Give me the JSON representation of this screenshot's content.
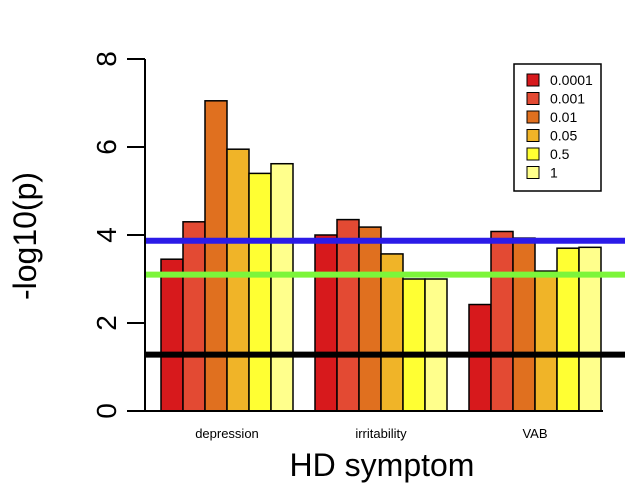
{
  "chart_data": {
    "type": "bar",
    "categories": [
      "depression",
      "irritability",
      "VAB"
    ],
    "xlabel": "HD symptom",
    "ylabel": "-log10(p)",
    "ylim": [
      0,
      8
    ],
    "yticks": [
      "0",
      "2",
      "4",
      "6",
      "8"
    ],
    "grid": false,
    "legend_position": "top-right",
    "series": [
      {
        "name": "0.0001",
        "color": "#d7191c",
        "values": [
          3.45,
          4.0,
          2.42
        ]
      },
      {
        "name": "0.001",
        "color": "#e34a33",
        "values": [
          4.3,
          4.35,
          4.08
        ]
      },
      {
        "name": "0.01",
        "color": "#e0701f",
        "values": [
          7.05,
          4.18,
          3.93
        ]
      },
      {
        "name": "0.05",
        "color": "#f0b428",
        "values": [
          5.95,
          3.57,
          3.18
        ]
      },
      {
        "name": "0.5",
        "color": "#ffff33",
        "values": [
          5.4,
          3.0,
          3.7
        ]
      },
      {
        "name": "1",
        "color": "#ffff8c",
        "values": [
          5.62,
          3.0,
          3.72
        ]
      }
    ],
    "reference_lines": [
      {
        "value": 3.87,
        "color": "#2b1be8"
      },
      {
        "value": 3.1,
        "color": "#7cf53a"
      },
      {
        "value": 1.28,
        "color": "#000000"
      }
    ]
  }
}
